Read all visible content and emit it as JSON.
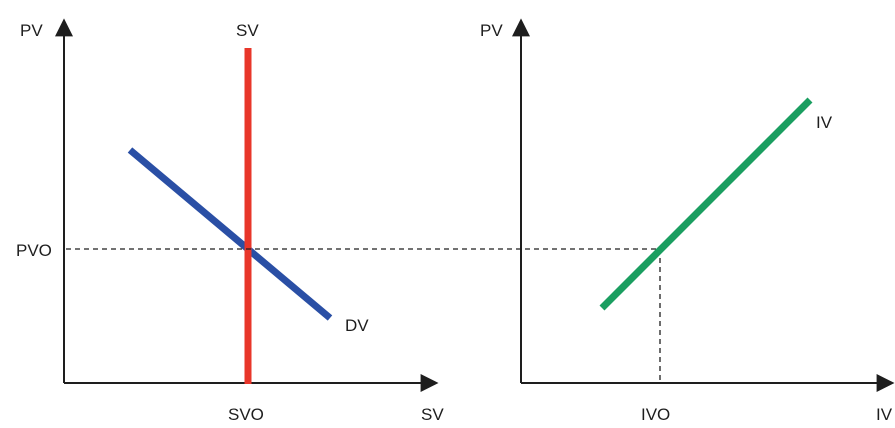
{
  "left_panel": {
    "y_axis_label": "PV",
    "x_axis_label": "SV",
    "supply_curve_label": "SV",
    "demand_curve_label": "DV",
    "equilibrium_price_label": "PVO",
    "equilibrium_quantity_label": "SVO"
  },
  "right_panel": {
    "y_axis_label": "PV",
    "x_axis_label": "IV",
    "curve_label": "IV",
    "equilibrium_quantity_label": "IVO"
  },
  "colors": {
    "supply_curve": "#e8362a",
    "demand_curve": "#2a4fa5",
    "iv_curve": "#1a9e60",
    "axes": "#1e1e1e"
  }
}
